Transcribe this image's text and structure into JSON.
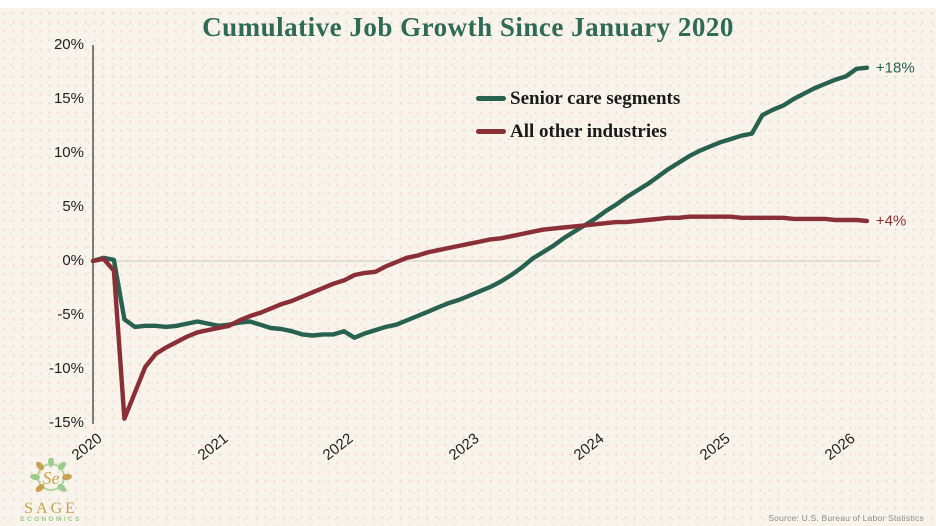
{
  "title": "Cumulative Job Growth Since January 2020",
  "legend": [
    {
      "label": "Senior care segments",
      "color": "#28614f"
    },
    {
      "label": "All other industries",
      "color": "#8a2f36"
    }
  ],
  "chart_data": {
    "type": "line",
    "title": "Cumulative Job Growth Since January 2020",
    "x_unit": "months since January 2020",
    "ylim": [
      -15,
      20
    ],
    "zero_gridline": true,
    "y_ticks": [
      {
        "label": "20%",
        "value": 20
      },
      {
        "label": "15%",
        "value": 15
      },
      {
        "label": "10%",
        "value": 10
      },
      {
        "label": "5%",
        "value": 5
      },
      {
        "label": "0%",
        "value": 0
      },
      {
        "label": "-5%",
        "value": -5
      },
      {
        "label": "-10%",
        "value": -10
      },
      {
        "label": "-15%",
        "value": -15
      }
    ],
    "x_ticks": [
      {
        "label": "2020",
        "month": 0
      },
      {
        "label": "2021",
        "month": 12
      },
      {
        "label": "2022",
        "month": 24
      },
      {
        "label": "2023",
        "month": 36
      },
      {
        "label": "2024",
        "month": 48
      },
      {
        "label": "2025",
        "month": 60
      },
      {
        "label": "2026",
        "month": 72
      }
    ],
    "series": [
      {
        "name": "Senior care segments",
        "color": "#28614f",
        "end_label": "+18%",
        "values": [
          0.0,
          0.3,
          0.1,
          -5.4,
          -6.1,
          -6.0,
          -6.0,
          -6.1,
          -6.0,
          -5.8,
          -5.6,
          -5.8,
          -6.0,
          -5.9,
          -5.7,
          -5.6,
          -5.9,
          -6.2,
          -6.3,
          -6.5,
          -6.8,
          -6.9,
          -6.8,
          -6.8,
          -6.5,
          -7.1,
          -6.7,
          -6.4,
          -6.1,
          -5.9,
          -5.5,
          -5.1,
          -4.7,
          -4.3,
          -3.9,
          -3.6,
          -3.2,
          -2.8,
          -2.4,
          -1.9,
          -1.3,
          -0.6,
          0.2,
          0.8,
          1.4,
          2.1,
          2.7,
          3.3,
          3.9,
          4.6,
          5.2,
          5.9,
          6.5,
          7.1,
          7.8,
          8.5,
          9.1,
          9.7,
          10.2,
          10.6,
          11.0,
          11.3,
          11.6,
          11.8,
          13.5,
          14.0,
          14.4,
          15.0,
          15.5,
          16.0,
          16.4,
          16.8,
          17.1,
          17.8,
          17.9
        ]
      },
      {
        "name": "All other industries",
        "color": "#8a2f36",
        "end_label": "+4%",
        "values": [
          0.0,
          0.2,
          -0.9,
          -14.6,
          -12.2,
          -9.8,
          -8.6,
          -8.0,
          -7.5,
          -7.0,
          -6.6,
          -6.4,
          -6.2,
          -6.0,
          -5.5,
          -5.1,
          -4.8,
          -4.4,
          -4.0,
          -3.7,
          -3.3,
          -2.9,
          -2.5,
          -2.1,
          -1.8,
          -1.3,
          -1.1,
          -1.0,
          -0.5,
          -0.1,
          0.3,
          0.5,
          0.8,
          1.0,
          1.2,
          1.4,
          1.6,
          1.8,
          2.0,
          2.1,
          2.3,
          2.5,
          2.7,
          2.9,
          3.0,
          3.1,
          3.2,
          3.3,
          3.4,
          3.5,
          3.6,
          3.6,
          3.7,
          3.8,
          3.9,
          4.0,
          4.0,
          4.1,
          4.1,
          4.1,
          4.1,
          4.1,
          4.0,
          4.0,
          4.0,
          4.0,
          4.0,
          3.9,
          3.9,
          3.9,
          3.9,
          3.8,
          3.8,
          3.8,
          3.7
        ]
      }
    ]
  },
  "logo": {
    "brand": "SAGE",
    "brand_sub": "ECONOMICS"
  },
  "footer": {
    "source": "Source: U.S. Bureau of Labor Statistics"
  }
}
